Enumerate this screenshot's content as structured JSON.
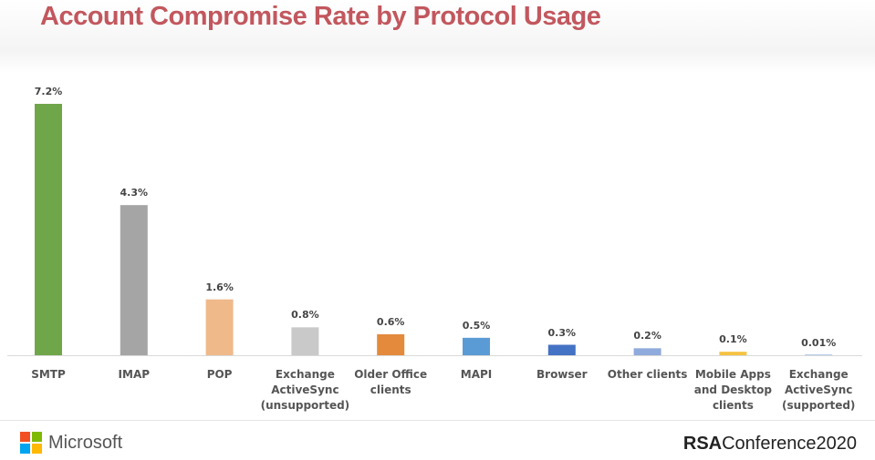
{
  "title": "Account Compromise Rate by Protocol Usage",
  "chart_data": {
    "type": "bar",
    "title": "Account Compromise Rate by Protocol Usage",
    "categories": [
      "SMTP",
      "IMAP",
      "POP",
      "Exchange\nActiveSync\n(unsupported)",
      "Older Office\nclients",
      "MAPI",
      "Browser",
      "Other clients",
      "Mobile Apps\nand Desktop\nclients",
      "Exchange\nActiveSync\n(supported)"
    ],
    "values": [
      7.2,
      4.3,
      1.6,
      0.8,
      0.6,
      0.5,
      0.3,
      0.2,
      0.1,
      0.01
    ],
    "labels": [
      "7.2%",
      "4.3%",
      "1.6%",
      "0.8%",
      "0.6%",
      "0.5%",
      "0.3%",
      "0.2%",
      "0.1%",
      "0.01%"
    ],
    "colors": [
      "#70a64a",
      "#a5a5a5",
      "#f0b98a",
      "#c9c9c9",
      "#e38a3c",
      "#5b9bd5",
      "#4472c4",
      "#8faadc",
      "#f5c242",
      "#6d9ad0"
    ],
    "ylim": [
      0,
      7.2
    ],
    "grid": false,
    "xlabel": "",
    "ylabel": ""
  },
  "footer": {
    "microsoft": "Microsoft",
    "rsa_bold": "RSA",
    "rsa_rest": "Conference2020"
  }
}
